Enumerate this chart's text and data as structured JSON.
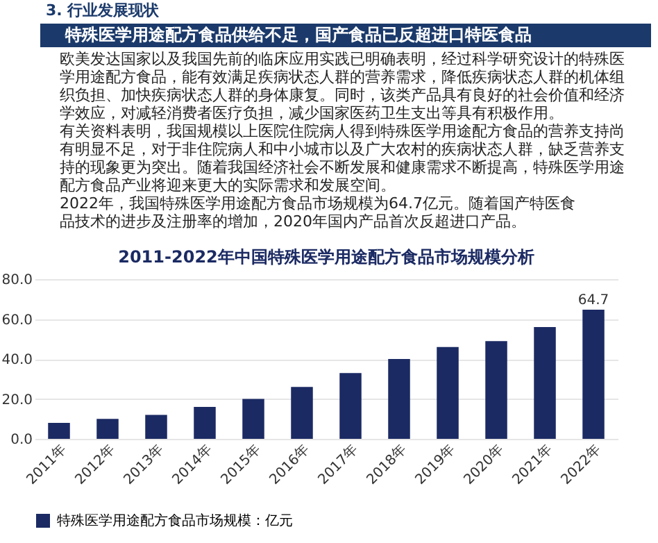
{
  "chart_data": {
    "type": "bar",
    "title": "2011-2022年中国特殊医学用途配方食品市场规模分析",
    "annotations": [
      "3. 行业发展现状",
      "特殊医学用途配方食品供给不足，国产食品已反超进口特医食品",
      "欧美发达国家以及我国先前的临床应用实践已明确表明，经过科学研究设计的特殊医学用途配方食品，能有效满足疾病状态人群的营养需求，降低疾病状态人群的机体组织负担、加快疾病状态人群的身体康复。同时，该类产品具有良好的社会价值和经济学效应，对减轻消费者医疗负担，减少国家医药卫生支出等具有积极作用。",
      "有关资料表明，我国规模以上医院住院病人得到特殊医学用途配方食品的营养支持尚有明显不足，对于非住院病人和中小城市以及广大农村的疾病状态人群，缺乏营养支持的现象更为突出。随着我国经济社会不断发展和健康需求不断提高，特殊医学用途配方食品产业将迎来更大的实际需求和发展空间。",
      "2022年，我国特殊医学用途配方食品市场规模为64.7亿元。随着国产特医食品技术的进步及注册率的增加，2020年国内产品首次反超进口产品。"
    ],
    "categories": [
      "2011年",
      "2012年",
      "2013年",
      "2014年",
      "2015年",
      "2016年",
      "2017年",
      "2018年",
      "2019年",
      "2020年",
      "2021年",
      "2022年"
    ],
    "series": [
      {
        "name": "特殊医学用途配方食品市场规模：亿元",
        "color": "#1b2a63",
        "values": [
          8,
          10,
          12,
          16,
          20,
          26,
          33,
          40,
          46,
          49,
          56,
          64.7
        ],
        "value_labels": [
          null,
          null,
          null,
          null,
          null,
          null,
          null,
          null,
          null,
          null,
          null,
          "64.7"
        ]
      }
    ],
    "ylim": [
      0,
      80
    ],
    "yticks": [
      {
        "value": 0,
        "label": "0.0"
      },
      {
        "value": 20,
        "label": "20.0"
      },
      {
        "value": 40,
        "label": "40.0"
      },
      {
        "value": 60,
        "label": "60.0"
      },
      {
        "value": 80,
        "label": "80.0"
      }
    ],
    "grid": "y",
    "legend": "bottom"
  }
}
